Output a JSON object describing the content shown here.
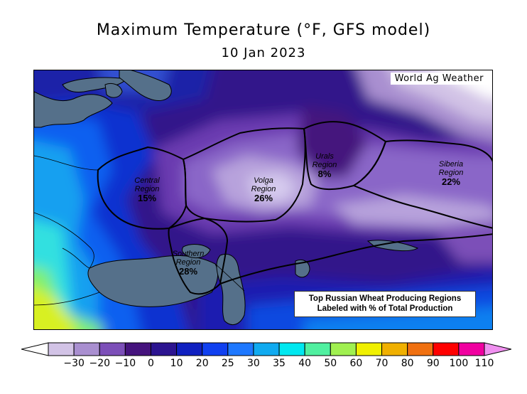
{
  "title": "Maximum Temperature (°F, GFS model)",
  "date": "10 Jan 2023",
  "credit": "World Ag Weather",
  "regions": [
    {
      "name_line1": "Central",
      "name_line2": "Region",
      "percent": "15%"
    },
    {
      "name_line1": "Volga",
      "name_line2": "Region",
      "percent": "26%"
    },
    {
      "name_line1": "Urals",
      "name_line2": "Region",
      "percent": "8%"
    },
    {
      "name_line1": "Siberia",
      "name_line2": "Region",
      "percent": "22%"
    },
    {
      "name_line1": "Southern",
      "name_line2": "Region",
      "percent": "28%"
    }
  ],
  "note_line1": "Top Russian Wheat Producing Regions",
  "note_line2": "Labeled with % of Total Production",
  "legend": {
    "ticks": [
      "−30",
      "−20",
      "−10",
      "0",
      "10",
      "20",
      "25",
      "30",
      "35",
      "40",
      "50",
      "60",
      "70",
      "80",
      "90",
      "100",
      "110"
    ],
    "colors": [
      "#d2c3e6",
      "#a98fd0",
      "#7c4fb8",
      "#45137d",
      "#2c1490",
      "#1020c0",
      "#1040f0",
      "#1e78ff",
      "#10aaf0",
      "#00e8f0",
      "#50f0a0",
      "#a0f050",
      "#f0f000",
      "#f0b000",
      "#f07010",
      "#ff0000",
      "#f000a0"
    ],
    "under_color": "#ffffff",
    "over_color": "#f090f0"
  }
}
